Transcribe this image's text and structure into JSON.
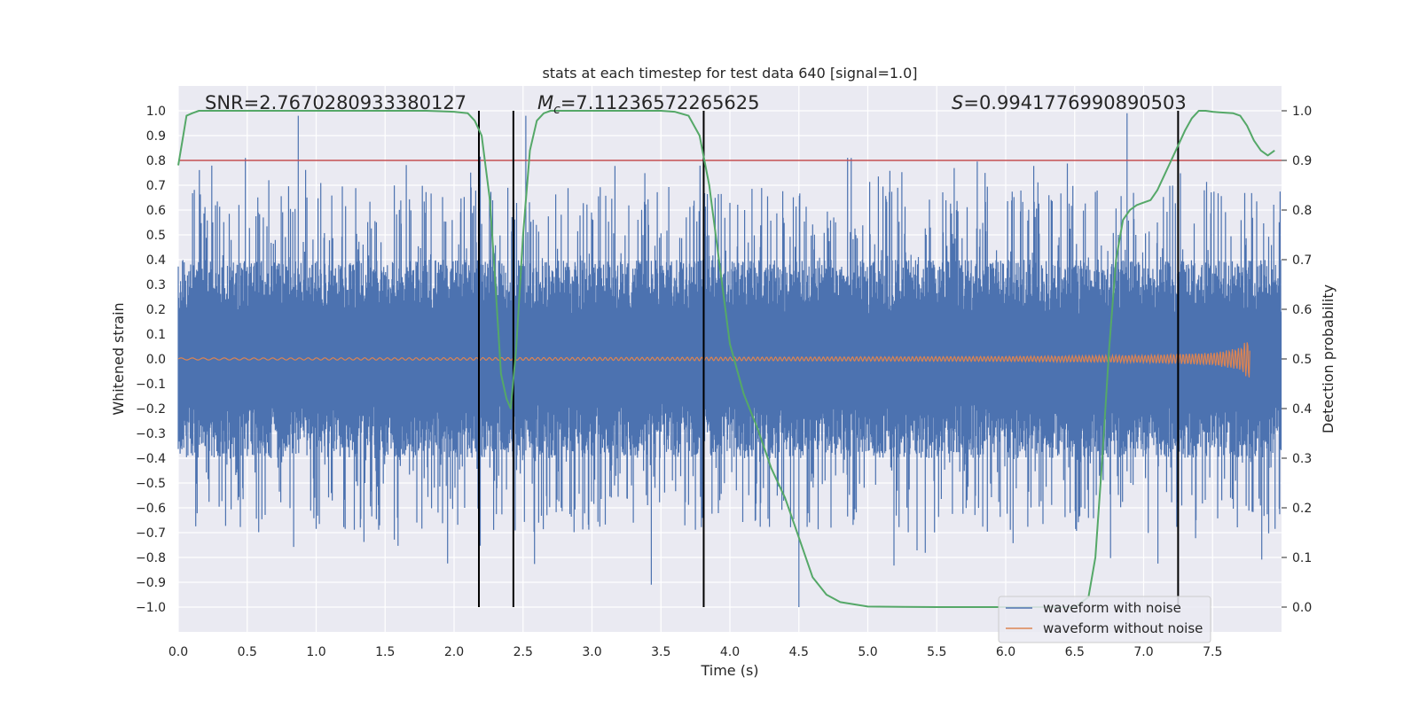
{
  "chart_data": {
    "type": "line",
    "title": "stats at each timestep for test data 640 [signal=1.0]",
    "xlabel": "Time (s)",
    "ylabel_left": "Whitened strain",
    "ylabel_right": "Detection probability",
    "xlim": [
      0.0,
      8.0
    ],
    "ylim_left": [
      -1.1,
      1.1
    ],
    "ylim_right": [
      -0.05,
      1.05
    ],
    "x_ticks": [
      "0.0",
      "0.5",
      "1.0",
      "1.5",
      "2.0",
      "2.5",
      "3.0",
      "3.5",
      "4.0",
      "4.5",
      "5.0",
      "5.5",
      "6.0",
      "6.5",
      "7.0",
      "7.5"
    ],
    "y_ticks_left": [
      "1.0",
      "0.9",
      "0.8",
      "0.7",
      "0.6",
      "0.5",
      "0.4",
      "0.3",
      "0.2",
      "0.1",
      "0.0",
      "−0.1",
      "−0.2",
      "−0.3",
      "−0.4",
      "−0.5",
      "−0.6",
      "−0.7",
      "−0.8",
      "−0.9",
      "−1.0"
    ],
    "y_ticks_right": [
      "1.0",
      "0.9",
      "0.8",
      "0.7",
      "0.6",
      "0.5",
      "0.4",
      "0.3",
      "0.2",
      "0.1",
      "0.0"
    ],
    "grid": true,
    "annotations": {
      "snr": "SNR=2.7670280933380127",
      "mc_symbol": "M",
      "mc_sub": "c",
      "mc_value": "=7.11236572265625",
      "s_symbol": "S",
      "s_value": "=0.9941776990890503"
    },
    "threshold_line": {
      "value_right_axis": 0.9,
      "color": "#c44e52"
    },
    "vertical_lines": [
      2.18,
      2.43,
      3.81,
      7.25
    ],
    "series": [
      {
        "name": "waveform with noise",
        "color": "#4c72b0",
        "axis": "left",
        "description": "whitened strain with noise, amplitude mostly within ±0.5, peaks to ±1.0",
        "envelope_peaks": [
          [
            0.87,
            0.98
          ],
          [
            6.88,
            0.99
          ],
          [
            4.5,
            -1.0
          ],
          [
            2.52,
            0.98
          ],
          [
            3.43,
            -0.91
          ]
        ]
      },
      {
        "name": "waveform without noise",
        "color": "#dd8452",
        "axis": "left",
        "description": "chirp signal growing in amplitude until merger near 7.77 s",
        "envelope": [
          [
            0.0,
            0.004
          ],
          [
            2.0,
            0.005
          ],
          [
            4.0,
            0.007
          ],
          [
            6.0,
            0.01
          ],
          [
            7.0,
            0.015
          ],
          [
            7.5,
            0.025
          ],
          [
            7.7,
            0.045
          ],
          [
            7.77,
            0.09
          ]
        ]
      },
      {
        "name": "detection probability",
        "color": "#55a868",
        "axis": "right",
        "x": [
          0.0,
          0.03,
          0.06,
          0.1,
          0.15,
          0.3,
          0.6,
          1.0,
          1.5,
          1.8,
          2.0,
          2.1,
          2.15,
          2.2,
          2.26,
          2.3,
          2.34,
          2.38,
          2.41,
          2.45,
          2.5,
          2.55,
          2.6,
          2.65,
          2.7,
          2.8,
          3.0,
          3.3,
          3.5,
          3.6,
          3.7,
          3.78,
          3.85,
          3.93,
          4.0,
          4.1,
          4.2,
          4.3,
          4.4,
          4.5,
          4.6,
          4.7,
          4.8,
          5.0,
          5.5,
          6.0,
          6.5,
          6.6,
          6.65,
          6.7,
          6.75,
          6.8,
          6.85,
          6.9,
          6.95,
          7.0,
          7.05,
          7.1,
          7.15,
          7.2,
          7.25,
          7.3,
          7.35,
          7.4,
          7.45,
          7.5,
          7.55,
          7.6,
          7.65,
          7.7,
          7.75,
          7.8,
          7.85,
          7.9,
          7.95
        ],
        "y": [
          0.89,
          0.94,
          0.99,
          0.995,
          1.0,
          1.0,
          1.0,
          1.0,
          1.0,
          1.0,
          0.998,
          0.995,
          0.98,
          0.95,
          0.82,
          0.65,
          0.47,
          0.42,
          0.4,
          0.52,
          0.75,
          0.92,
          0.98,
          0.995,
          1.0,
          1.0,
          1.0,
          1.0,
          1.0,
          0.998,
          0.99,
          0.95,
          0.85,
          0.68,
          0.53,
          0.43,
          0.36,
          0.28,
          0.22,
          0.14,
          0.06,
          0.025,
          0.01,
          0.001,
          0.0,
          0.0,
          0.0,
          0.02,
          0.1,
          0.3,
          0.52,
          0.7,
          0.78,
          0.8,
          0.81,
          0.815,
          0.82,
          0.84,
          0.87,
          0.9,
          0.93,
          0.96,
          0.985,
          1.0,
          1.0,
          0.998,
          0.997,
          0.996,
          0.995,
          0.99,
          0.97,
          0.94,
          0.92,
          0.91,
          0.92
        ]
      }
    ],
    "legend": {
      "position": "lower-right",
      "entries": [
        {
          "label": "waveform with noise",
          "color": "#4c72b0"
        },
        {
          "label": "waveform without noise",
          "color": "#dd8452"
        }
      ]
    },
    "colors": {
      "plot_background": "#eaeaf2",
      "grid": "#ffffff",
      "vertical_line": "#000000"
    }
  }
}
